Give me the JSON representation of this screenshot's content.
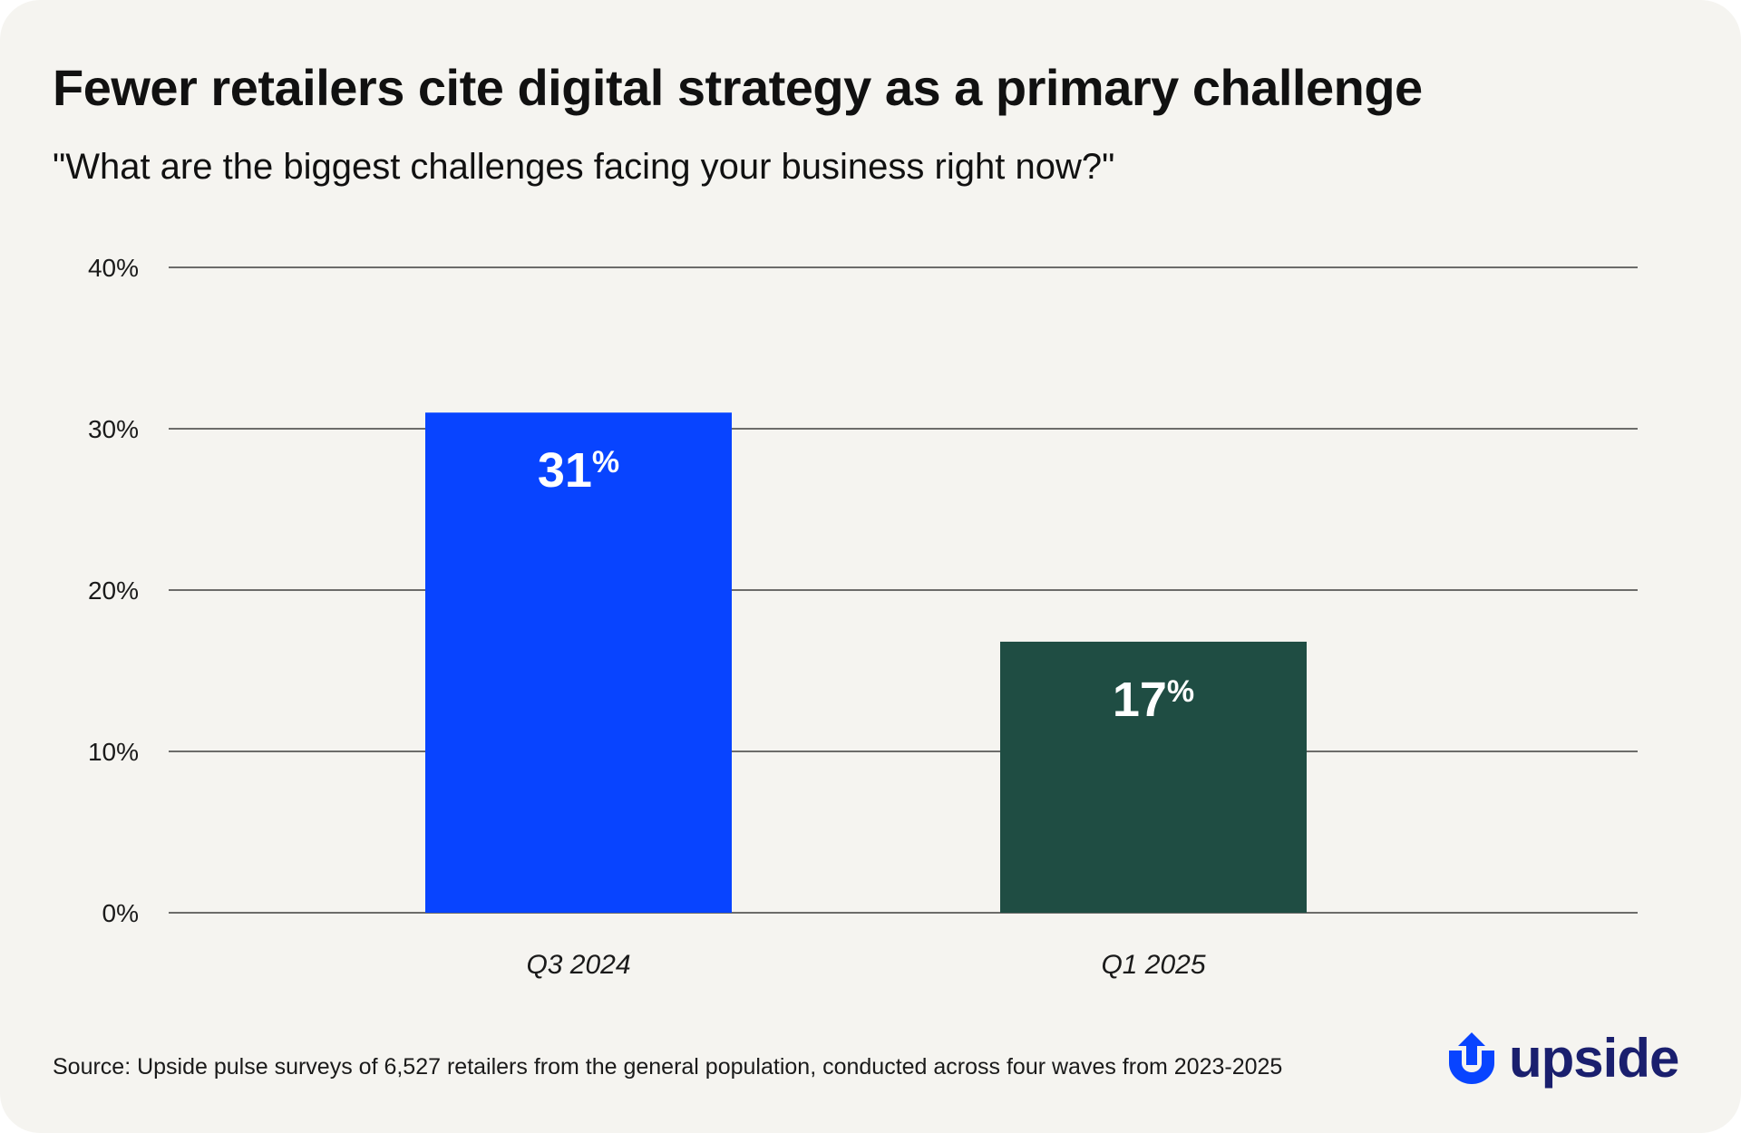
{
  "title": "Fewer retailers cite digital strategy as a primary challenge",
  "subtitle": "\"What are the biggest challenges facing your business right now?\"",
  "source": "Source: Upside pulse surveys of 6,527 retailers from the general population, conducted across four waves from 2023-2025",
  "logo": {
    "text": "upside",
    "icon": "upside-arrow-icon",
    "color": "#1a1f6e",
    "icon_color": "#0844ff"
  },
  "chart_data": {
    "type": "bar",
    "title": "Fewer retailers cite digital strategy as a primary challenge",
    "subtitle": "\"What are the biggest challenges facing your business right now?\"",
    "categories": [
      "Q3 2024",
      "Q1 2025"
    ],
    "values": [
      31,
      16.8
    ],
    "data_labels": [
      "31",
      "17"
    ],
    "data_label_suffix": "%",
    "colors": [
      "#0844ff",
      "#1f4d43"
    ],
    "ylim": [
      0,
      40
    ],
    "yticks": [
      0,
      10,
      20,
      30,
      40
    ],
    "ytick_labels": [
      "0%",
      "10%",
      "20%",
      "30%",
      "40%"
    ],
    "xlabel": "",
    "ylabel": "",
    "grid": true
  }
}
